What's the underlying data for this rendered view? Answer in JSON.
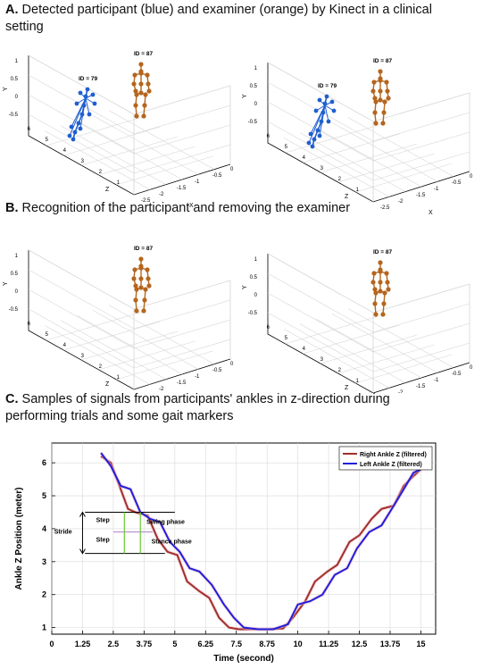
{
  "sections": {
    "a_letter": "A.",
    "a_text": "Detected participant (blue) and examiner (orange) by Kinect in a clinical setting",
    "b_letter": "B.",
    "b_text": "Recognition of the participant and removing the examiner",
    "c_letter": "C.",
    "c_text": "Samples of signals from participants' ankles in z-direction during performing trials and some gait markers"
  },
  "skeleton_panels": [
    {
      "examiner_id": "ID = 87",
      "participant_id": "ID = 79",
      "show_participant": true
    },
    {
      "examiner_id": "ID = 87",
      "participant_id": "ID = 79",
      "show_participant": true
    },
    {
      "examiner_id": "ID = 87",
      "show_participant": false
    },
    {
      "examiner_id": "ID = 87",
      "show_participant": false
    }
  ],
  "panel_axes": {
    "y_label": "Y",
    "z_label": "Z",
    "x_label": "X",
    "y_ticks": [
      "1",
      "0.5",
      "0",
      "-0.5"
    ],
    "z_ticks": [
      "6",
      "5",
      "4",
      "3",
      "2",
      "1"
    ],
    "x_ticks": [
      "-2.5",
      "-2",
      "-1.5",
      "-1",
      "-0.5",
      "0"
    ]
  },
  "colors": {
    "participant": "#1f5fd0",
    "examiner": "#b5651d",
    "right_ankle": "#a0302a",
    "left_ankle": "#1f1fdc",
    "marker": "#66cc33"
  },
  "chart_data": {
    "type": "line",
    "xlabel": "Time (second)",
    "ylabel": "Ankle Z Position (meter)",
    "xlim": [
      0,
      15.6
    ],
    "ylim": [
      0.8,
      6.6
    ],
    "x_ticks": [
      0,
      1.25,
      2.5,
      3.75,
      5,
      6.25,
      7.5,
      8.75,
      10,
      11.25,
      12.5,
      13.75,
      15
    ],
    "x_tick_labels": [
      "0",
      "1.25",
      "2.5",
      "3.75",
      "5",
      "6.25",
      "7.5",
      "8.75",
      "10",
      "11.25",
      "12.5",
      "13.75",
      "15"
    ],
    "y_ticks": [
      1,
      2,
      3,
      4,
      5,
      6
    ],
    "legend": "top-right",
    "series": [
      {
        "name": "Right Ankle Z (filtered)",
        "color": "#a0302a",
        "x": [
          2.0,
          2.4,
          2.8,
          3.1,
          3.4,
          3.9,
          4.3,
          4.7,
          5.1,
          5.5,
          6.0,
          6.4,
          6.8,
          7.2,
          7.6,
          8.0,
          8.8,
          9.4,
          9.8,
          10.3,
          10.7,
          11.2,
          11.6,
          12.1,
          12.5,
          13.0,
          13.4,
          13.9,
          14.3,
          14.7,
          15.0
        ],
        "y": [
          6.2,
          6.0,
          5.2,
          4.6,
          4.5,
          4.4,
          3.7,
          3.3,
          3.2,
          2.4,
          2.1,
          1.9,
          1.3,
          1.0,
          0.95,
          0.95,
          0.95,
          0.97,
          1.3,
          1.8,
          2.4,
          2.7,
          2.9,
          3.6,
          3.8,
          4.3,
          4.6,
          4.7,
          5.3,
          5.6,
          5.8
        ]
      },
      {
        "name": "Left Ankle Z (filtered)",
        "color": "#1f1fdc",
        "x": [
          2.0,
          2.4,
          2.8,
          3.2,
          3.6,
          4.0,
          4.4,
          4.8,
          5.2,
          5.6,
          6.0,
          6.5,
          7.0,
          7.4,
          7.8,
          8.4,
          9.0,
          9.6,
          10.0,
          10.5,
          11.0,
          11.5,
          12.0,
          12.4,
          12.9,
          13.4,
          13.9,
          14.3,
          14.7,
          15.0
        ],
        "y": [
          6.3,
          5.9,
          5.3,
          5.2,
          4.5,
          4.3,
          4.2,
          3.6,
          3.3,
          2.8,
          2.7,
          2.3,
          1.7,
          1.3,
          1.0,
          0.95,
          0.95,
          1.1,
          1.7,
          1.8,
          2.0,
          2.6,
          2.8,
          3.4,
          3.9,
          4.1,
          4.7,
          5.2,
          5.7,
          5.8
        ]
      }
    ],
    "annotations": {
      "stride": "Stride",
      "step1": "Step",
      "step2": "Step",
      "swing": "Swing phase",
      "stance": "Stance phase"
    }
  }
}
